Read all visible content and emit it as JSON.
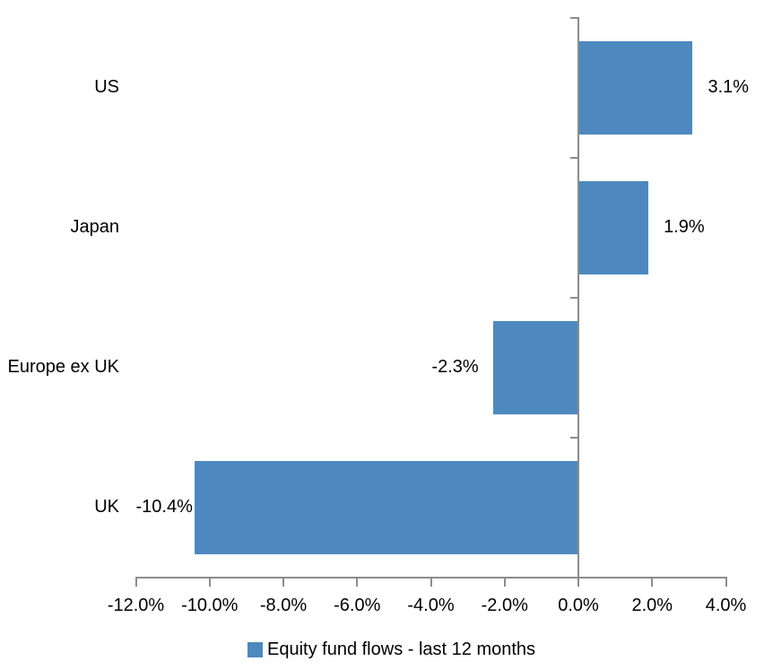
{
  "chart_data": {
    "type": "bar",
    "orientation": "horizontal",
    "categories": [
      "US",
      "Japan",
      "Europe ex UK",
      "UK"
    ],
    "values": [
      3.1,
      1.9,
      -2.3,
      -10.4
    ],
    "data_labels": [
      "3.1%",
      "1.9%",
      "-2.3%",
      "-10.4%"
    ],
    "series": [
      {
        "name": "Equity fund flows - last 12 months",
        "values": [
          3.1,
          1.9,
          -2.3,
          -10.4
        ]
      }
    ],
    "xlim": [
      -12,
      4
    ],
    "x_tick_labels": [
      "-12.0%",
      "-10.0%",
      "-8.0%",
      "-6.0%",
      "-4.0%",
      "-2.0%",
      "0.0%",
      "2.0%",
      "4.0%"
    ],
    "grid": false,
    "legend_position": "bottom",
    "legend": {
      "label": "Equity fund flows - last 12 months"
    },
    "colors": {
      "bar": "#4D89BE",
      "axis": "#8C8C8C",
      "text": "#000000",
      "background": "#FFFFFF"
    }
  }
}
